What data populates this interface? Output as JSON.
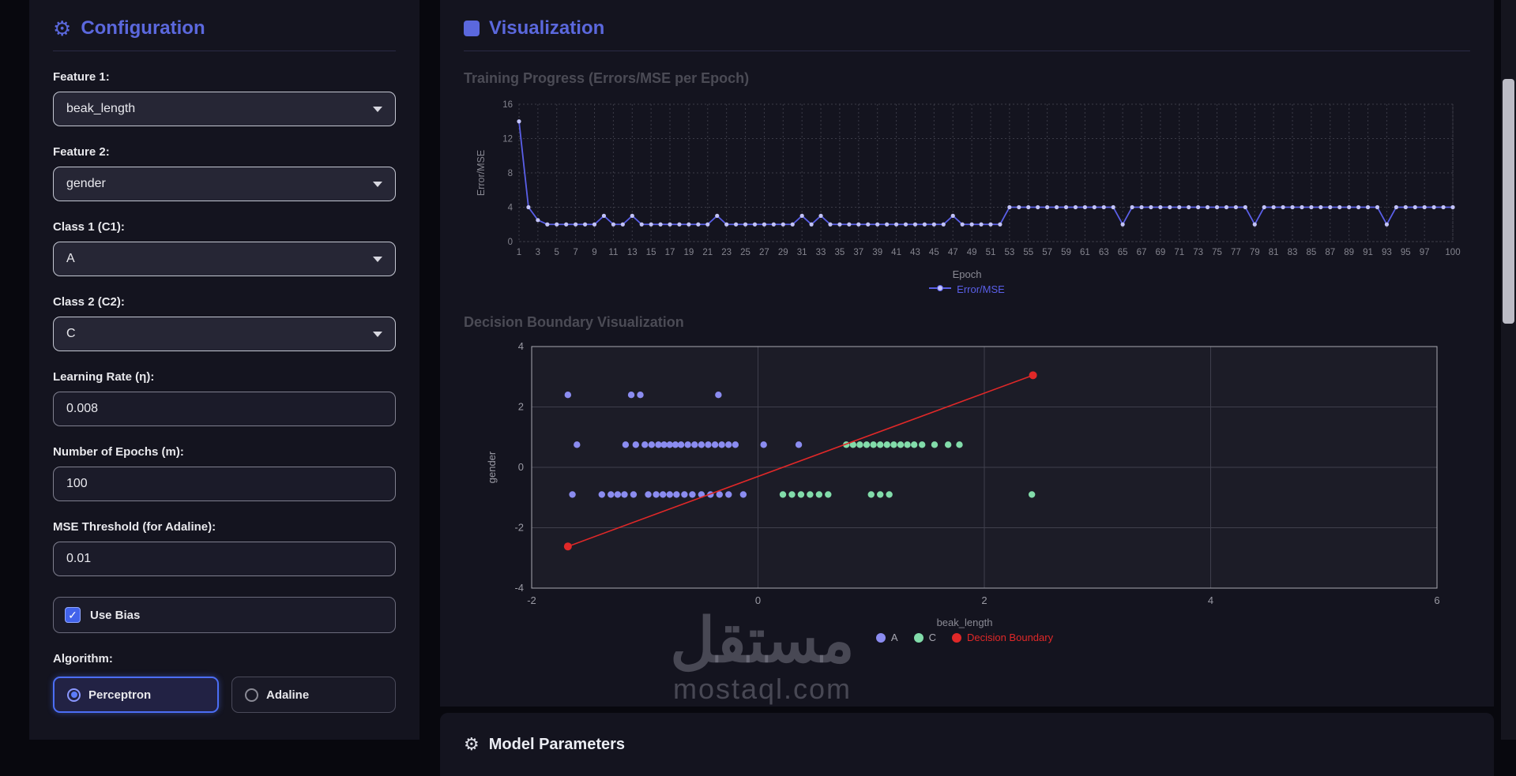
{
  "app": {
    "background": "#08080e",
    "accent": "#5b68dd"
  },
  "config": {
    "title": "Configuration",
    "fields": {
      "feature1": {
        "label": "Feature 1:",
        "value": "beak_length"
      },
      "feature2": {
        "label": "Feature 2:",
        "value": "gender"
      },
      "class1": {
        "label": "Class 1 (C1):",
        "value": "A"
      },
      "class2": {
        "label": "Class 2 (C2):",
        "value": "C"
      },
      "learning_rate": {
        "label": "Learning Rate (η):",
        "value": "0.008"
      },
      "epochs": {
        "label": "Number of Epochs (m):",
        "value": "100"
      },
      "mse_threshold": {
        "label": "MSE Threshold (for Adaline):",
        "value": "0.01"
      }
    },
    "use_bias": {
      "label": "Use Bias",
      "checked": true
    },
    "algorithm": {
      "label": "Algorithm:",
      "options": [
        {
          "label": "Perceptron",
          "selected": true
        },
        {
          "label": "Adaline",
          "selected": false
        }
      ]
    }
  },
  "visualization": {
    "title": "Visualization",
    "training_section_title": "Training Progress (Errors/MSE per Epoch)",
    "boundary_section_title": "Decision Boundary Visualization"
  },
  "model_parameters": {
    "title": "Model Parameters"
  },
  "watermark": {
    "line1": "مستقل",
    "line2": "mostaql.com"
  },
  "chart_data": [
    {
      "type": "line",
      "title": "Training Progress (Errors/MSE per Epoch)",
      "xlabel": "Epoch",
      "ylabel": "Error/MSE",
      "series_name": "Error/MSE",
      "x_range": [
        1,
        100
      ],
      "ylim": [
        0,
        16
      ],
      "yticks": [
        0,
        4,
        8,
        12,
        16
      ],
      "xticks": [
        1,
        3,
        5,
        7,
        9,
        11,
        13,
        15,
        17,
        19,
        21,
        23,
        25,
        27,
        29,
        31,
        33,
        35,
        37,
        39,
        41,
        43,
        45,
        47,
        49,
        51,
        53,
        55,
        57,
        59,
        61,
        63,
        65,
        67,
        69,
        71,
        73,
        75,
        77,
        79,
        81,
        83,
        85,
        87,
        89,
        91,
        93,
        95,
        97,
        100
      ],
      "values": [
        14,
        4,
        2.5,
        2,
        2,
        2,
        2,
        2,
        2,
        3,
        2,
        2,
        3,
        2,
        2,
        2,
        2,
        2,
        2,
        2,
        2,
        3,
        2,
        2,
        2,
        2,
        2,
        2,
        2,
        2,
        3,
        2,
        3,
        2,
        2,
        2,
        2,
        2,
        2,
        2,
        2,
        2,
        2,
        2,
        2,
        2,
        3,
        2,
        2,
        2,
        2,
        2,
        4,
        4,
        4,
        4,
        4,
        4,
        4,
        4,
        4,
        4,
        4,
        4,
        2,
        4,
        4,
        4,
        4,
        4,
        4,
        4,
        4,
        4,
        4,
        4,
        4,
        4,
        2,
        4,
        4,
        4,
        4,
        4,
        4,
        4,
        4,
        4,
        4,
        4,
        4,
        4,
        2,
        4,
        4,
        4,
        4,
        4,
        4,
        4
      ],
      "line_color": "#5a5fe8",
      "point_color": "#c2c3f7",
      "grid": "dotted",
      "legend_position": "bottom"
    },
    {
      "type": "scatter",
      "title": "Decision Boundary Visualization",
      "xlabel": "beak_length",
      "ylabel": "gender",
      "xlim": [
        -2,
        6
      ],
      "ylim": [
        -4,
        4
      ],
      "xticks": [
        -2,
        0,
        2,
        4,
        6
      ],
      "yticks": [
        -4,
        -2,
        0,
        2,
        4
      ],
      "grid": "solid",
      "legend_position": "bottom",
      "series": [
        {
          "name": "A",
          "color": "#8b8cf0",
          "points": [
            [
              -1.68,
              2.4
            ],
            [
              -1.12,
              2.4
            ],
            [
              -1.04,
              2.4
            ],
            [
              -0.35,
              2.4
            ],
            [
              -1.6,
              0.75
            ],
            [
              -1.17,
              0.75
            ],
            [
              -1.08,
              0.75
            ],
            [
              -1.0,
              0.75
            ],
            [
              -0.94,
              0.75
            ],
            [
              -0.88,
              0.75
            ],
            [
              -0.83,
              0.75
            ],
            [
              -0.78,
              0.75
            ],
            [
              -0.73,
              0.75
            ],
            [
              -0.68,
              0.75
            ],
            [
              -0.62,
              0.75
            ],
            [
              -0.56,
              0.75
            ],
            [
              -0.5,
              0.75
            ],
            [
              -0.44,
              0.75
            ],
            [
              -0.38,
              0.75
            ],
            [
              -0.32,
              0.75
            ],
            [
              -0.26,
              0.75
            ],
            [
              -0.2,
              0.75
            ],
            [
              0.05,
              0.75
            ],
            [
              0.36,
              0.75
            ],
            [
              -1.64,
              -0.9
            ],
            [
              -1.38,
              -0.9
            ],
            [
              -1.3,
              -0.9
            ],
            [
              -1.24,
              -0.9
            ],
            [
              -1.18,
              -0.9
            ],
            [
              -1.1,
              -0.9
            ],
            [
              -0.97,
              -0.9
            ],
            [
              -0.9,
              -0.9
            ],
            [
              -0.84,
              -0.9
            ],
            [
              -0.78,
              -0.9
            ],
            [
              -0.72,
              -0.9
            ],
            [
              -0.65,
              -0.9
            ],
            [
              -0.58,
              -0.9
            ],
            [
              -0.5,
              -0.9
            ],
            [
              -0.42,
              -0.9
            ],
            [
              -0.34,
              -0.9
            ],
            [
              -0.26,
              -0.9
            ],
            [
              -0.13,
              -0.9
            ]
          ]
        },
        {
          "name": "C",
          "color": "#82dcaa",
          "points": [
            [
              0.78,
              0.75
            ],
            [
              0.84,
              0.75
            ],
            [
              0.9,
              0.75
            ],
            [
              0.96,
              0.75
            ],
            [
              1.02,
              0.75
            ],
            [
              1.08,
              0.75
            ],
            [
              1.14,
              0.75
            ],
            [
              1.2,
              0.75
            ],
            [
              1.26,
              0.75
            ],
            [
              1.32,
              0.75
            ],
            [
              1.38,
              0.75
            ],
            [
              1.45,
              0.75
            ],
            [
              1.56,
              0.75
            ],
            [
              1.68,
              0.75
            ],
            [
              1.78,
              0.75
            ],
            [
              0.22,
              -0.9
            ],
            [
              0.3,
              -0.9
            ],
            [
              0.38,
              -0.9
            ],
            [
              0.46,
              -0.9
            ],
            [
              0.54,
              -0.9
            ],
            [
              0.62,
              -0.9
            ],
            [
              1.0,
              -0.9
            ],
            [
              1.08,
              -0.9
            ],
            [
              1.16,
              -0.9
            ],
            [
              2.42,
              -0.9
            ]
          ]
        }
      ],
      "boundary": {
        "name": "Decision Boundary",
        "color": "#e02828",
        "from": [
          -1.68,
          -2.62
        ],
        "to": [
          2.43,
          3.05
        ]
      }
    }
  ]
}
